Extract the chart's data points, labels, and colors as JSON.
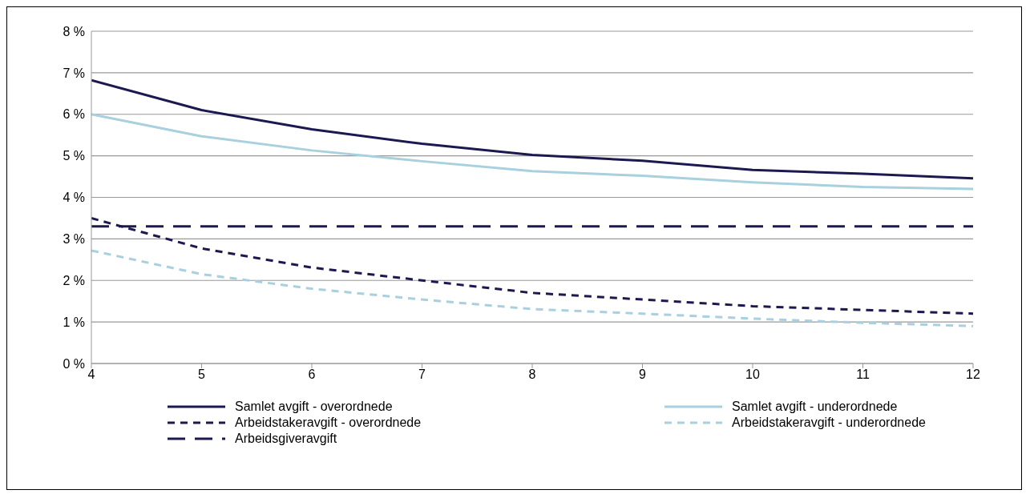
{
  "chart_data": {
    "type": "line",
    "x": [
      4,
      5,
      6,
      7,
      8,
      9,
      10,
      11,
      12
    ],
    "xlim": [
      4,
      12
    ],
    "xticks": [
      4,
      5,
      6,
      7,
      8,
      9,
      10,
      11,
      12
    ],
    "ylim": [
      0,
      8
    ],
    "yticks": [
      {
        "value": 0,
        "label": "0 %"
      },
      {
        "value": 1,
        "label": "1 %"
      },
      {
        "value": 2,
        "label": "2 %"
      },
      {
        "value": 3,
        "label": "3 %"
      },
      {
        "value": 4,
        "label": "4 %"
      },
      {
        "value": 5,
        "label": "5 %"
      },
      {
        "value": 6,
        "label": "6 %"
      },
      {
        "value": 7,
        "label": "7 %"
      },
      {
        "value": 8,
        "label": "8 %"
      }
    ],
    "grid": "y",
    "legend": "bottom",
    "marker": "none",
    "series": [
      {
        "name": "Samlet avgift - overordnede",
        "color": "#1c1850",
        "line_style": "solid",
        "values": [
          6.82,
          6.1,
          5.64,
          5.29,
          5.02,
          4.88,
          4.66,
          4.57,
          4.46
        ]
      },
      {
        "name": "Samlet avgift - underordnede",
        "color": "#a8d0de",
        "line_style": "solid",
        "values": [
          6.0,
          5.47,
          5.13,
          4.87,
          4.63,
          4.52,
          4.36,
          4.25,
          4.2
        ]
      },
      {
        "name": "Arbeidstakeravgift - overordnede",
        "color": "#1c1850",
        "line_style": "dashed",
        "values": [
          3.5,
          2.77,
          2.31,
          2.0,
          1.7,
          1.54,
          1.38,
          1.29,
          1.2
        ]
      },
      {
        "name": "Arbeidstakeravgift - underordnede",
        "color": "#a8d0de",
        "line_style": "dashed",
        "values": [
          2.72,
          2.15,
          1.8,
          1.54,
          1.31,
          1.2,
          1.08,
          0.98,
          0.9
        ]
      },
      {
        "name": "Arbeidsgiveravgift",
        "color": "#1c1850",
        "line_style": "dashed",
        "values": [
          3.3,
          3.3,
          3.3,
          3.3,
          3.3,
          3.3,
          3.3,
          3.3,
          3.3
        ]
      }
    ]
  }
}
